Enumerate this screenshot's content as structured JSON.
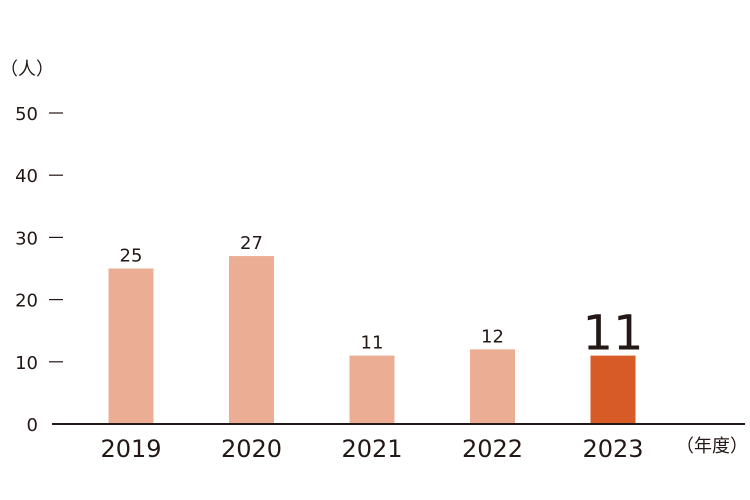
{
  "chart_data": {
    "type": "bar",
    "title": "",
    "xlabel": "（年度）",
    "ylabel": "（人）",
    "ylim": [
      0,
      50
    ],
    "yticks": [
      0,
      10,
      20,
      30,
      40,
      50
    ],
    "categories": [
      "2019",
      "2020",
      "2021",
      "2022",
      "2023"
    ],
    "values": [
      25,
      27,
      11,
      12,
      11
    ],
    "data_labels": [
      "25",
      "27",
      "11",
      "12",
      "11"
    ],
    "highlight_index": 4,
    "colors": {
      "bar": "#EBAE94",
      "highlight": "#D65B27",
      "axis": "#231815",
      "text": "#231815"
    },
    "grid": false,
    "legend": "none"
  }
}
